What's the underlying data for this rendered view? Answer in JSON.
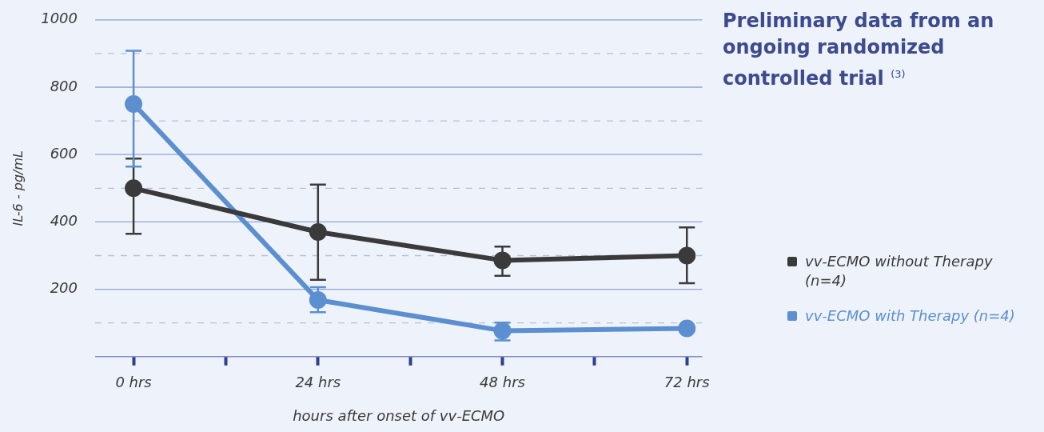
{
  "chart_data": {
    "type": "line",
    "title": "Preliminary data from an ongoing randomized controlled trial $^{(3)}$",
    "xlabel": "hours after onset of vv-ECMO",
    "ylabel": "IL-6 - pg/mL",
    "x": [
      0,
      24,
      48,
      72
    ],
    "series": [
      {
        "name": "vv-ECMO without Therapy (n=4)",
        "color": "#3a3a3a",
        "values": [
          500,
          370,
          286,
          300
        ],
        "errors": [
          [
            365,
            588
          ],
          [
            228,
            511
          ],
          [
            240,
            327
          ],
          [
            218,
            384
          ]
        ]
      },
      {
        "name": "vv-ECMO with Therapy (n=4)",
        "color": "#5b8fd0",
        "values": [
          750,
          168,
          77,
          84
        ],
        "errors": [
          [
            564,
            908
          ],
          [
            132,
            206
          ],
          [
            48,
            101
          ],
          null
        ]
      }
    ],
    "xlim": [
      -5,
      74
    ],
    "xticks": [
      {
        "value": 0,
        "label": "0 hrs"
      },
      {
        "value": 12,
        "label": null
      },
      {
        "value": 24,
        "label": "24 hrs"
      },
      {
        "value": 36,
        "label": null
      },
      {
        "value": 48,
        "label": "48 hrs"
      },
      {
        "value": 60,
        "label": null
      },
      {
        "value": 72,
        "label": "72 hrs"
      }
    ],
    "ylim": [
      0,
      1000
    ],
    "yticks": [
      {
        "value": 100,
        "label": null
      },
      200,
      {
        "value": 300,
        "label": null
      },
      400,
      {
        "value": 500,
        "label": null
      },
      600,
      {
        "value": 700,
        "label": null
      },
      800,
      {
        "value": 900,
        "label": null
      },
      1000
    ],
    "grid": "y",
    "legend": "bottom right",
    "marker": "circle",
    "line_style": "solid"
  }
}
